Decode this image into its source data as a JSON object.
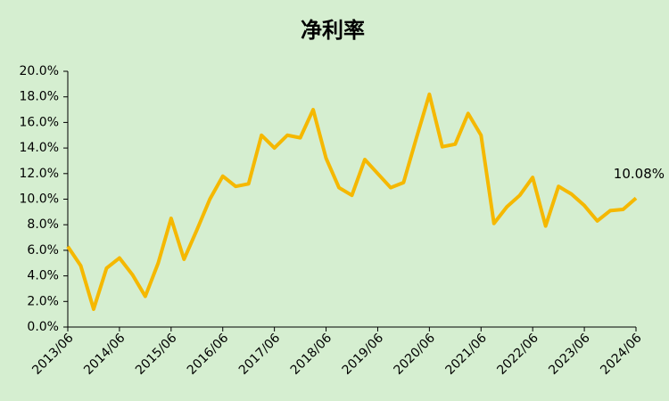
{
  "chart_data": {
    "type": "line",
    "title": "净利率",
    "categories": [
      "2013/06",
      null,
      null,
      null,
      "2014/06",
      null,
      null,
      null,
      "2015/06",
      null,
      null,
      null,
      "2016/06",
      null,
      null,
      null,
      "2017/06",
      null,
      null,
      null,
      "2018/06",
      null,
      null,
      null,
      "2019/06",
      null,
      null,
      null,
      "2020/06",
      null,
      null,
      null,
      "2021/06",
      null,
      null,
      null,
      "2022/06",
      null,
      null,
      null,
      "2023/06",
      null,
      null,
      null,
      "2024/06"
    ],
    "series": [
      {
        "color": "#f5b800",
        "values": [
          6.3,
          4.8,
          1.4,
          4.6,
          5.4,
          4.1,
          2.4,
          5.0,
          8.5,
          5.3,
          7.6,
          10.0,
          11.8,
          11.0,
          11.2,
          15.0,
          14.0,
          15.0,
          14.8,
          17.0,
          13.2,
          10.9,
          10.3,
          13.1,
          12.0,
          10.9,
          11.3,
          14.8,
          18.2,
          14.1,
          14.3,
          16.7,
          15.0,
          8.1,
          9.4,
          10.3,
          11.7,
          7.9,
          11.0,
          10.4,
          9.5,
          8.3,
          9.1,
          9.2,
          10.08
        ],
        "value_labels": [
          null,
          null,
          null,
          null,
          null,
          null,
          null,
          null,
          null,
          null,
          null,
          null,
          null,
          null,
          null,
          null,
          null,
          null,
          null,
          null,
          null,
          null,
          null,
          null,
          null,
          null,
          null,
          null,
          null,
          null,
          null,
          null,
          null,
          null,
          null,
          null,
          null,
          null,
          null,
          null,
          null,
          null,
          null,
          null,
          "10.08%"
        ]
      }
    ],
    "ylim": [
      0,
      20
    ],
    "yticks": [
      {
        "value": 0,
        "label": "0.0%"
      },
      {
        "value": 2,
        "label": "2.0%"
      },
      {
        "value": 4,
        "label": "4.0%"
      },
      {
        "value": 6,
        "label": "6.0%"
      },
      {
        "value": 8,
        "label": "8.0%"
      },
      {
        "value": 10,
        "label": "10.0%"
      },
      {
        "value": 12,
        "label": "12.0%"
      },
      {
        "value": 14,
        "label": "14.0%"
      },
      {
        "value": 16,
        "label": "16.0%"
      },
      {
        "value": 18,
        "label": "18.0%"
      },
      {
        "value": 20,
        "label": "20.0%"
      }
    ],
    "grid": false
  }
}
